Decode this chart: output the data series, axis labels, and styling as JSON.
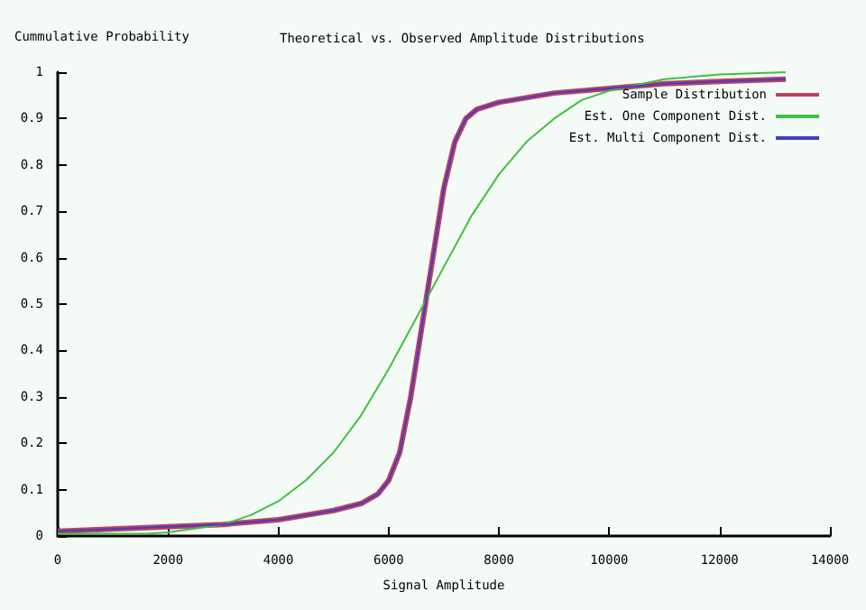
{
  "chart_data": {
    "type": "line",
    "title": "Theoretical vs. Observed Amplitude Distributions",
    "xlabel": "Signal Amplitude",
    "ylabel": "Cummulative Probability",
    "xlim": [
      0,
      14000
    ],
    "xticks": [
      0,
      2000,
      4000,
      6000,
      8000,
      10000,
      12000,
      14000
    ],
    "ylim": [
      0,
      1
    ],
    "yticks": [
      0,
      0.1,
      0.2,
      0.3,
      0.4,
      0.5,
      0.6,
      0.7,
      0.8,
      0.9,
      1
    ],
    "grid": false,
    "legend": "top right",
    "marker": "none",
    "line_style": "solid",
    "series": [
      {
        "name": "Sample Distribution",
        "color": "#c04060",
        "x": [
          0,
          1000,
          2000,
          3000,
          4000,
          5000,
          5500,
          5800,
          6000,
          6200,
          6400,
          6600,
          6800,
          7000,
          7200,
          7400,
          7600,
          8000,
          9000,
          10000,
          11000,
          12000,
          13200
        ],
        "values": [
          0.01,
          0.015,
          0.02,
          0.025,
          0.035,
          0.055,
          0.07,
          0.09,
          0.12,
          0.18,
          0.3,
          0.45,
          0.6,
          0.75,
          0.85,
          0.9,
          0.92,
          0.935,
          0.955,
          0.965,
          0.975,
          0.98,
          0.985
        ]
      },
      {
        "name": "Est. One Component Dist.",
        "color": "#40c040",
        "x": [
          0,
          1600,
          2000,
          3000,
          3500,
          4000,
          4500,
          5000,
          5500,
          6000,
          6500,
          7000,
          7500,
          8000,
          8500,
          9000,
          9500,
          10000,
          11000,
          12000,
          13200
        ],
        "values": [
          0.005,
          0.005,
          0.008,
          0.025,
          0.045,
          0.075,
          0.12,
          0.18,
          0.26,
          0.36,
          0.47,
          0.58,
          0.69,
          0.78,
          0.85,
          0.9,
          0.94,
          0.96,
          0.985,
          0.995,
          1.0
        ]
      },
      {
        "name": "Est. Multi Component Dist.",
        "color": "#4040c0",
        "x": [
          0,
          1000,
          2000,
          3000,
          4000,
          5000,
          5500,
          5800,
          6000,
          6200,
          6400,
          6600,
          6800,
          7000,
          7200,
          7400,
          7600,
          8000,
          9000,
          10000,
          11000,
          12000,
          13200
        ],
        "values": [
          0.01,
          0.015,
          0.02,
          0.025,
          0.035,
          0.055,
          0.07,
          0.09,
          0.12,
          0.18,
          0.3,
          0.45,
          0.6,
          0.75,
          0.85,
          0.9,
          0.92,
          0.935,
          0.955,
          0.965,
          0.975,
          0.98,
          0.985
        ]
      }
    ]
  }
}
